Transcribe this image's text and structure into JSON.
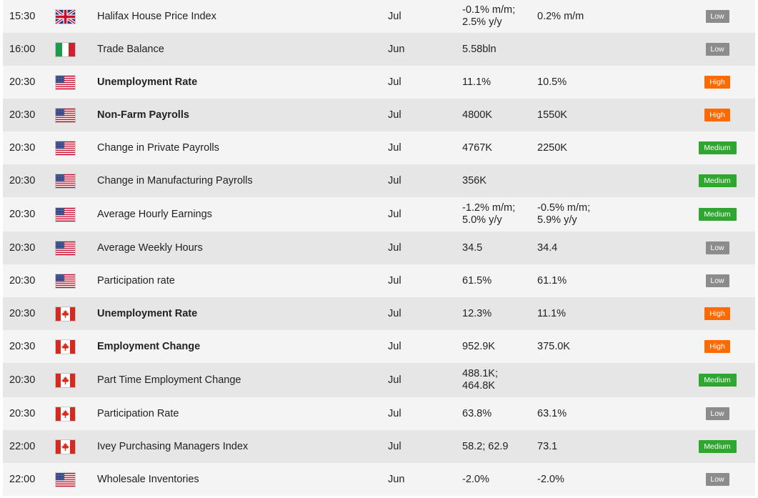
{
  "colors": {
    "low": "#8c8c8c",
    "high": "#ff6a00",
    "medium": "#2fa62f",
    "row_odd": "#f4f4f4",
    "row_even": "#e6e6e6"
  },
  "rows": [
    {
      "time": "15:30",
      "flag": "uk-flag-icon",
      "event": "Halifax House Price Index",
      "bold": false,
      "period": "Jul",
      "actual_line1": "-0.1% m/m;",
      "actual_line2": "2.5% y/y",
      "forecast_line1": "0.2% m/m",
      "forecast_line2": "",
      "importance": "Low"
    },
    {
      "time": "16:00",
      "flag": "italy-flag-icon",
      "event": "Trade Balance",
      "bold": false,
      "period": "Jun",
      "actual_line1": "5.58bln",
      "actual_line2": "",
      "forecast_line1": "",
      "forecast_line2": "",
      "importance": "Low"
    },
    {
      "time": "20:30",
      "flag": "us-flag-icon",
      "event": "Unemployment Rate",
      "bold": true,
      "period": "Jul",
      "actual_line1": "11.1%",
      "actual_line2": "",
      "forecast_line1": "10.5%",
      "forecast_line2": "",
      "importance": "High"
    },
    {
      "time": "20:30",
      "flag": "us-flag-icon",
      "event": "Non-Farm Payrolls",
      "bold": true,
      "period": "Jul",
      "actual_line1": "4800K",
      "actual_line2": "",
      "forecast_line1": "1550K",
      "forecast_line2": "",
      "importance": "High"
    },
    {
      "time": "20:30",
      "flag": "us-flag-icon",
      "event": "Change in Private Payrolls",
      "bold": false,
      "period": "Jul",
      "actual_line1": "4767K",
      "actual_line2": "",
      "forecast_line1": "2250K",
      "forecast_line2": "",
      "importance": "Medium"
    },
    {
      "time": "20:30",
      "flag": "us-flag-icon",
      "event": "Change in Manufacturing Payrolls",
      "bold": false,
      "period": "Jul",
      "actual_line1": "356K",
      "actual_line2": "",
      "forecast_line1": "",
      "forecast_line2": "",
      "importance": "Medium"
    },
    {
      "time": "20:30",
      "flag": "us-flag-icon",
      "event": "Average Hourly Earnings",
      "bold": false,
      "period": "Jul",
      "actual_line1": "-1.2% m/m;",
      "actual_line2": "5.0% y/y",
      "forecast_line1": "-0.5% m/m;",
      "forecast_line2": "5.9% y/y",
      "importance": "Medium"
    },
    {
      "time": "20:30",
      "flag": "us-flag-icon",
      "event": "Average Weekly Hours",
      "bold": false,
      "period": "Jul",
      "actual_line1": "34.5",
      "actual_line2": "",
      "forecast_line1": "34.4",
      "forecast_line2": "",
      "importance": "Low"
    },
    {
      "time": "20:30",
      "flag": "us-flag-icon",
      "event": "Participation rate",
      "bold": false,
      "period": "Jul",
      "actual_line1": "61.5%",
      "actual_line2": "",
      "forecast_line1": "61.1%",
      "forecast_line2": "",
      "importance": "Low"
    },
    {
      "time": "20:30",
      "flag": "canada-flag-icon",
      "event": "Unemployment Rate",
      "bold": true,
      "period": "Jul",
      "actual_line1": "12.3%",
      "actual_line2": "",
      "forecast_line1": "11.1%",
      "forecast_line2": "",
      "importance": "High"
    },
    {
      "time": "20:30",
      "flag": "canada-flag-icon",
      "event": "Employment Change",
      "bold": true,
      "period": "Jul",
      "actual_line1": "952.9K",
      "actual_line2": "",
      "forecast_line1": "375.0K",
      "forecast_line2": "",
      "importance": "High"
    },
    {
      "time": "20:30",
      "flag": "canada-flag-icon",
      "event": "Part Time Employment Change",
      "bold": false,
      "period": "Jul",
      "actual_line1": "488.1K;",
      "actual_line2": "464.8K",
      "forecast_line1": "",
      "forecast_line2": "",
      "importance": "Medium"
    },
    {
      "time": "20:30",
      "flag": "canada-flag-icon",
      "event": "Participation Rate",
      "bold": false,
      "period": "Jul",
      "actual_line1": "63.8%",
      "actual_line2": "",
      "forecast_line1": "63.1%",
      "forecast_line2": "",
      "importance": "Low"
    },
    {
      "time": "22:00",
      "flag": "canada-flag-icon",
      "event": "Ivey Purchasing Managers Index",
      "bold": false,
      "period": "Jul",
      "actual_line1": "58.2; 62.9",
      "actual_line2": "",
      "forecast_line1": "73.1",
      "forecast_line2": "",
      "importance": "Medium"
    },
    {
      "time": "22:00",
      "flag": "us-flag-icon",
      "event": "Wholesale Inventories",
      "bold": false,
      "period": "Jun",
      "actual_line1": "-2.0%",
      "actual_line2": "",
      "forecast_line1": "-2.0%",
      "forecast_line2": "",
      "importance": "Low"
    }
  ]
}
